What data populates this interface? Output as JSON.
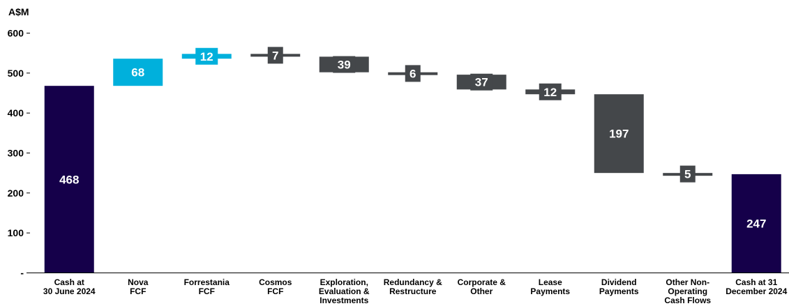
{
  "chart_data": {
    "type": "bar",
    "subtype": "waterfall",
    "unit_label": "A$M",
    "ylim": [
      0,
      600
    ],
    "yticks": [
      "-",
      "100",
      "200",
      "300",
      "400",
      "500",
      "600"
    ],
    "grid": false,
    "legend": "none",
    "categories": [
      "Cash at\n30 June 2024",
      "Nova\nFCF",
      "Forrestania\nFCF",
      "Cosmos\nFCF",
      "Exploration,\nEvaluation &\nInvestments",
      "Redundancy &\nRestructure",
      "Corporate &\nOther",
      "Lease\nPayments",
      "Dividend\nPayments",
      "Other Non-\nOperating\nCash Flows",
      "Cash at 31\nDecember 2024"
    ],
    "values": [
      468,
      68,
      12,
      -7,
      -39,
      -6,
      -37,
      -12,
      -197,
      -5,
      247
    ],
    "value_labels": [
      "468",
      "68",
      "12",
      "7",
      "39",
      "6",
      "37",
      "12",
      "197",
      "5",
      "247"
    ],
    "kinds": [
      "total",
      "increase",
      "increase",
      "decrease",
      "decrease",
      "decrease",
      "decrease",
      "decrease",
      "decrease",
      "decrease",
      "total"
    ],
    "colors": {
      "total": "#15004a",
      "increase": "#00b0dc",
      "decrease": "#44474a"
    }
  }
}
